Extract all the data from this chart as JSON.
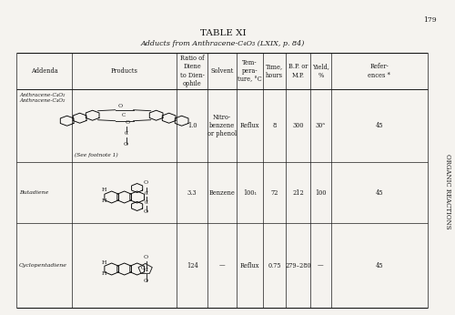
{
  "title": "TABLE XI",
  "subtitle": "Adducts from Anthracene-C₄O₃ (LXIX, p. 84)",
  "page_number": "179",
  "side_text": "ORGANIC REACTIONS",
  "bg_color": "#f5f3ef",
  "text_color": "#1a1a1a",
  "header_cols": [
    "Addenda",
    "Products",
    "Ratio of\nDiene\nto Dien-\nophile",
    "Solvent",
    "Tem-\npera-\nture, °C",
    "Time,\nhours",
    "B.P. or\nM.P.",
    "Yield,\n%",
    "Refer-\nences *"
  ],
  "row0": {
    "addenda": "Anthracene-C₄O₂\nAnthracene-C₄O₂",
    "ratio": "1.0",
    "solvent": "Nitro-\nbenzene\nor phenol",
    "temp": "Reflux",
    "time": "8",
    "bp_mp": "300",
    "yield": "30ᵃ",
    "ref": "45",
    "footnote": "(See footnote 1)"
  },
  "row1": {
    "addenda": "Butadiene",
    "ratio": "3.3",
    "solvent": "Benzene",
    "temp": "100₁",
    "time": "72",
    "bp_mp": "212",
    "yield": "100",
    "ref": "45"
  },
  "row2": {
    "addenda": "Cyclopentadiene",
    "ratio": "124",
    "solvent": "—",
    "temp": "Reflux",
    "time": "0.75",
    "bp_mp": "279–280",
    "yield": "—",
    "ref": "45"
  }
}
